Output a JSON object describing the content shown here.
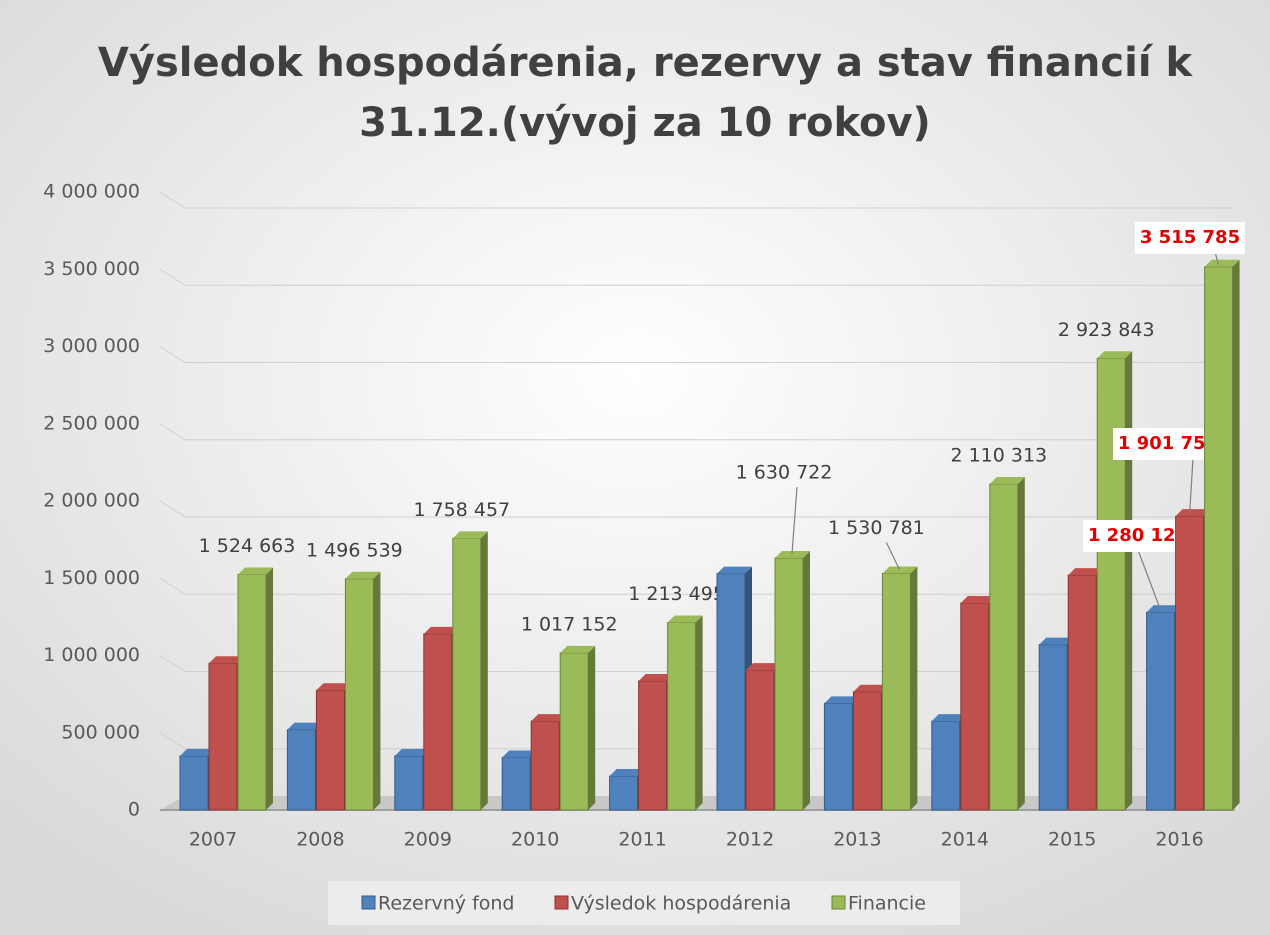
{
  "chart_data": {
    "type": "bar3d",
    "title": "Výsledok hospodárenia, rezervy a stav financií k 31.12.(vývoj za 10 rokov)",
    "categories": [
      "2007",
      "2008",
      "2009",
      "2010",
      "2011",
      "2012",
      "2013",
      "2014",
      "2015",
      "2016"
    ],
    "series": [
      {
        "name": "Rezervný fond",
        "color": "#4f81bd",
        "values": [
          350000,
          520000,
          350000,
          340000,
          220000,
          1530000,
          690000,
          575000,
          1070000,
          1280125
        ],
        "value_labels": [
          null,
          null,
          null,
          null,
          null,
          null,
          null,
          null,
          null,
          "1 280 125"
        ]
      },
      {
        "name": "Výsledok hospodárenia",
        "color": "#c0504d",
        "values": [
          950000,
          775000,
          1140000,
          575000,
          835000,
          905000,
          765000,
          1340000,
          1520000,
          1901756
        ],
        "value_labels": [
          null,
          null,
          null,
          null,
          null,
          null,
          null,
          null,
          null,
          "1 901 756"
        ]
      },
      {
        "name": "Financie",
        "color": "#9bbb59",
        "values": [
          1524663,
          1496539,
          1758457,
          1017152,
          1213495,
          1630722,
          1530781,
          2110313,
          2923843,
          3515785
        ],
        "value_labels": [
          "1 524 663",
          "1 496 539",
          "1 758 457",
          "1 017 152",
          "1 213 495",
          "1 630 722",
          "1 530 781",
          "2 110 313",
          "2 923 843",
          "3 515 785"
        ]
      }
    ],
    "ylim": [
      0,
      4000000
    ],
    "yticks": [
      0,
      {
        "value": 500000,
        "label": "500 000"
      },
      {
        "value": 1000000,
        "label": "1 000 000"
      },
      {
        "value": 1500000,
        "label": "1 500 000"
      },
      {
        "value": 2000000,
        "label": "2 000 000"
      },
      {
        "value": 2500000,
        "label": "2 500 000"
      },
      {
        "value": 3000000,
        "label": "3 000 000"
      },
      {
        "value": 3500000,
        "label": "3 500 000"
      },
      {
        "value": 4000000,
        "label": "4 000 000"
      }
    ],
    "grid": true,
    "legend": "bottom"
  }
}
